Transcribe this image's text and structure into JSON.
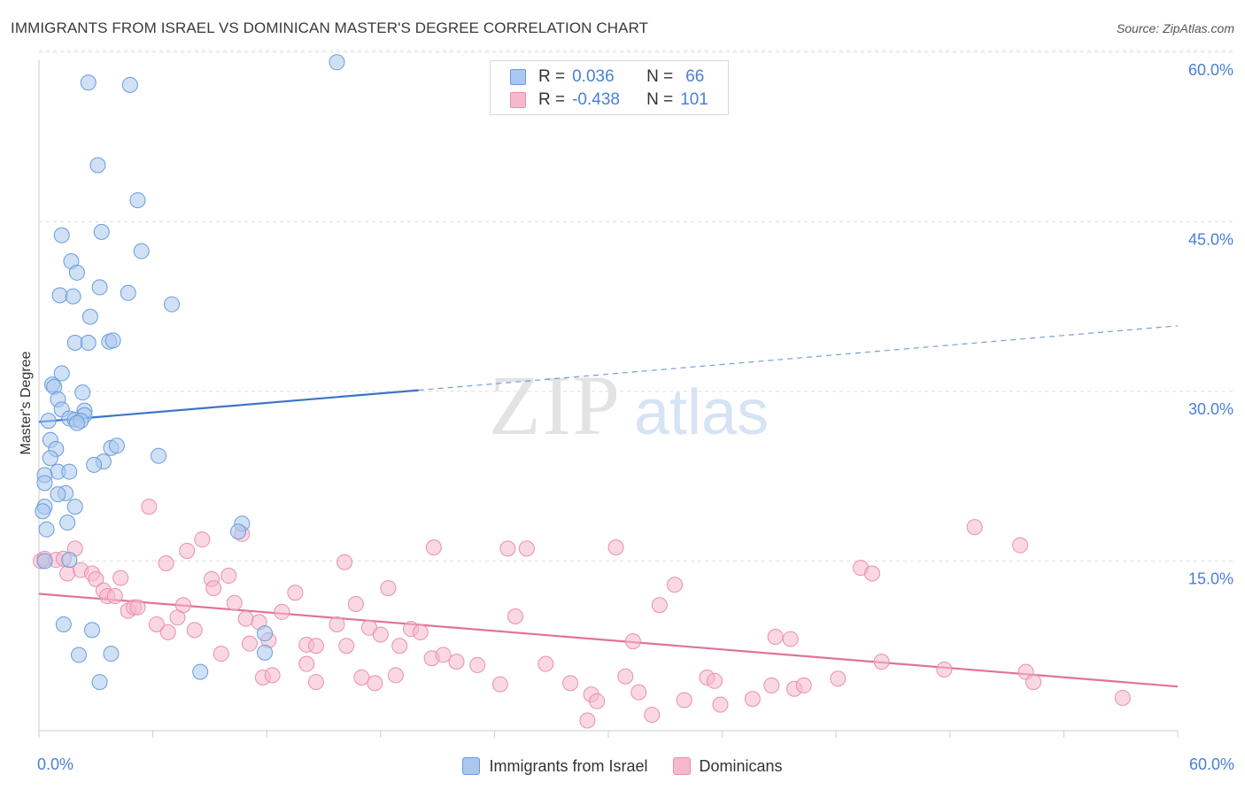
{
  "title": "IMMIGRANTS FROM ISRAEL VS DOMINICAN MASTER'S DEGREE CORRELATION CHART",
  "source": "Source: ZipAtlas.com",
  "watermark": {
    "zip": "ZIP",
    "atlas": "atlas"
  },
  "legend": {
    "rows": [
      {
        "r_label": "R =",
        "r_value": "0.036",
        "n_label": "N =",
        "n_value": "66"
      },
      {
        "r_label": "R =",
        "r_value": "-0.438",
        "n_label": "N =",
        "n_value": "101"
      }
    ]
  },
  "bottom_legend": [
    "Immigrants from Israel",
    "Dominicans"
  ],
  "chart_data": {
    "type": "scatter",
    "title": "IMMIGRANTS FROM ISRAEL VS DOMINICAN MASTER'S DEGREE CORRELATION CHART",
    "xlabel": "",
    "ylabel": "Master's Degree",
    "xlim": [
      0,
      60
    ],
    "ylim": [
      0,
      62
    ],
    "x_tick_labels": [
      "0.0%",
      "60.0%"
    ],
    "y_ticks": [
      15,
      30,
      45,
      60
    ],
    "y_tick_labels": [
      "15.0%",
      "30.0%",
      "45.0%",
      "60.0%"
    ],
    "grid": "horizontal dashed",
    "legend_position": "top-center",
    "colors": {
      "israel_fill": "#aac8ee",
      "israel_stroke": "#6a9bdc",
      "israel_line": "#3a76c8",
      "dominican_fill": "#f6b8cc",
      "dominican_stroke": "#ea8fac",
      "dominican_line": "#e0739a",
      "axis_label": "#4a7fd6"
    },
    "series": [
      {
        "name": "Immigrants from Israel",
        "r": 0.036,
        "n": 66,
        "trend": {
          "x0": 0,
          "y0": 27.3,
          "x1": 20,
          "y1": 30.1,
          "dashed_to_x": 60,
          "dashed_to_y": 35.8
        },
        "points": [
          [
            15.7,
            59.1
          ],
          [
            2.6,
            57.3
          ],
          [
            4.8,
            57.1
          ],
          [
            3.1,
            50.0
          ],
          [
            5.2,
            46.9
          ],
          [
            3.3,
            44.1
          ],
          [
            1.2,
            43.8
          ],
          [
            5.4,
            42.4
          ],
          [
            1.7,
            41.5
          ],
          [
            2.0,
            40.5
          ],
          [
            3.2,
            39.2
          ],
          [
            4.7,
            38.7
          ],
          [
            1.1,
            38.5
          ],
          [
            1.8,
            38.4
          ],
          [
            7.0,
            37.7
          ],
          [
            2.7,
            36.6
          ],
          [
            1.9,
            34.3
          ],
          [
            2.6,
            34.3
          ],
          [
            3.7,
            34.4
          ],
          [
            3.9,
            34.5
          ],
          [
            1.2,
            31.6
          ],
          [
            0.7,
            30.6
          ],
          [
            0.8,
            30.4
          ],
          [
            1.0,
            29.3
          ],
          [
            2.3,
            29.9
          ],
          [
            1.2,
            28.4
          ],
          [
            2.4,
            28.3
          ],
          [
            2.4,
            27.9
          ],
          [
            1.6,
            27.6
          ],
          [
            1.9,
            27.5
          ],
          [
            0.5,
            27.4
          ],
          [
            2.2,
            27.4
          ],
          [
            2.0,
            27.2
          ],
          [
            0.6,
            25.7
          ],
          [
            3.8,
            25.0
          ],
          [
            4.1,
            25.2
          ],
          [
            0.9,
            24.9
          ],
          [
            0.6,
            24.1
          ],
          [
            6.3,
            24.3
          ],
          [
            3.4,
            23.8
          ],
          [
            2.9,
            23.5
          ],
          [
            1.0,
            22.9
          ],
          [
            1.6,
            22.9
          ],
          [
            0.3,
            22.6
          ],
          [
            0.3,
            21.9
          ],
          [
            1.4,
            21.0
          ],
          [
            1.0,
            20.9
          ],
          [
            0.3,
            19.8
          ],
          [
            1.9,
            19.8
          ],
          [
            0.2,
            19.4
          ],
          [
            1.5,
            18.4
          ],
          [
            10.7,
            18.3
          ],
          [
            10.5,
            17.6
          ],
          [
            0.4,
            17.8
          ],
          [
            1.6,
            15.1
          ],
          [
            0.3,
            15.0
          ],
          [
            1.3,
            9.4
          ],
          [
            2.8,
            8.9
          ],
          [
            11.9,
            8.6
          ],
          [
            11.9,
            6.9
          ],
          [
            2.1,
            6.7
          ],
          [
            3.8,
            6.8
          ],
          [
            8.5,
            5.2
          ],
          [
            3.2,
            4.3
          ]
        ]
      },
      {
        "name": "Dominicans",
        "r": -0.438,
        "n": 101,
        "trend": {
          "x0": 0,
          "y0": 12.1,
          "x1": 60,
          "y1": 3.9
        },
        "points": [
          [
            0.1,
            15.0
          ],
          [
            0.3,
            15.2
          ],
          [
            0.9,
            15.1
          ],
          [
            1.3,
            15.2
          ],
          [
            1.9,
            16.1
          ],
          [
            1.5,
            13.9
          ],
          [
            2.2,
            14.2
          ],
          [
            2.8,
            13.9
          ],
          [
            3.0,
            13.4
          ],
          [
            4.3,
            13.5
          ],
          [
            5.8,
            19.8
          ],
          [
            6.7,
            14.8
          ],
          [
            7.8,
            15.9
          ],
          [
            8.6,
            16.9
          ],
          [
            10.7,
            17.4
          ],
          [
            9.1,
            13.4
          ],
          [
            10.0,
            13.7
          ],
          [
            3.4,
            12.4
          ],
          [
            3.6,
            11.9
          ],
          [
            4.0,
            11.9
          ],
          [
            9.2,
            12.6
          ],
          [
            10.3,
            11.3
          ],
          [
            13.5,
            12.2
          ],
          [
            16.1,
            14.9
          ],
          [
            16.7,
            11.2
          ],
          [
            4.7,
            10.6
          ],
          [
            5.0,
            10.9
          ],
          [
            5.2,
            10.9
          ],
          [
            6.2,
            9.4
          ],
          [
            6.8,
            8.7
          ],
          [
            7.3,
            10.0
          ],
          [
            7.6,
            11.1
          ],
          [
            8.2,
            8.9
          ],
          [
            10.9,
            9.9
          ],
          [
            11.6,
            9.6
          ],
          [
            12.8,
            10.5
          ],
          [
            11.1,
            7.7
          ],
          [
            12.1,
            8.0
          ],
          [
            14.1,
            7.6
          ],
          [
            14.6,
            7.5
          ],
          [
            9.6,
            6.8
          ],
          [
            15.7,
            9.4
          ],
          [
            16.2,
            7.5
          ],
          [
            17.4,
            9.1
          ],
          [
            18.0,
            8.5
          ],
          [
            18.4,
            12.6
          ],
          [
            19.6,
            9.0
          ],
          [
            19.0,
            7.5
          ],
          [
            20.1,
            8.7
          ],
          [
            20.7,
            6.4
          ],
          [
            21.3,
            6.7
          ],
          [
            22.0,
            6.1
          ],
          [
            23.1,
            5.8
          ],
          [
            11.8,
            4.7
          ],
          [
            12.3,
            4.9
          ],
          [
            14.1,
            5.9
          ],
          [
            14.6,
            4.3
          ],
          [
            17.0,
            4.7
          ],
          [
            17.7,
            4.2
          ],
          [
            18.8,
            4.9
          ],
          [
            20.8,
            16.2
          ],
          [
            24.3,
            4.1
          ],
          [
            24.7,
            16.1
          ],
          [
            25.7,
            16.1
          ],
          [
            25.1,
            10.1
          ],
          [
            26.7,
            5.9
          ],
          [
            28.0,
            4.2
          ],
          [
            28.9,
            0.9
          ],
          [
            29.1,
            3.2
          ],
          [
            29.4,
            2.6
          ],
          [
            30.4,
            16.2
          ],
          [
            31.3,
            7.9
          ],
          [
            30.9,
            4.8
          ],
          [
            31.6,
            3.4
          ],
          [
            32.3,
            1.4
          ],
          [
            32.7,
            11.1
          ],
          [
            33.5,
            12.9
          ],
          [
            34.0,
            2.7
          ],
          [
            35.2,
            4.7
          ],
          [
            35.6,
            4.4
          ],
          [
            35.9,
            2.3
          ],
          [
            37.6,
            2.8
          ],
          [
            38.8,
            8.3
          ],
          [
            38.6,
            4.0
          ],
          [
            39.6,
            8.1
          ],
          [
            39.8,
            3.7
          ],
          [
            40.3,
            4.0
          ],
          [
            42.1,
            4.6
          ],
          [
            43.3,
            14.4
          ],
          [
            43.9,
            13.9
          ],
          [
            44.4,
            6.1
          ],
          [
            47.7,
            5.4
          ],
          [
            49.3,
            18.0
          ],
          [
            51.7,
            16.4
          ],
          [
            52.0,
            5.2
          ],
          [
            52.4,
            4.3
          ],
          [
            57.1,
            2.9
          ]
        ]
      }
    ]
  }
}
